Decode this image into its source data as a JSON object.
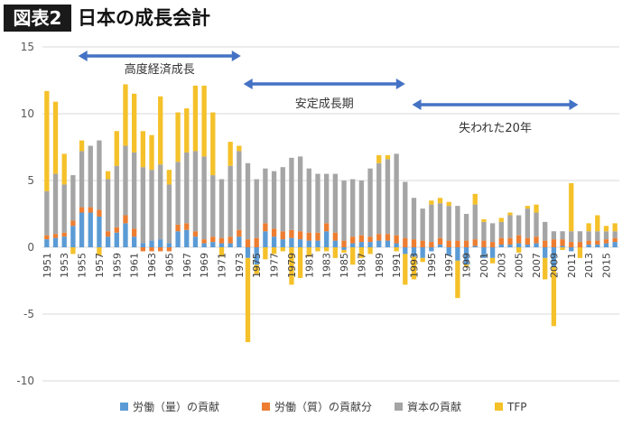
{
  "header": {
    "badge": "図表2",
    "title": "日本の成長会計"
  },
  "colors": {
    "labor_quantity": "#5b9bd5",
    "labor_quality": "#ed7d31",
    "capital": "#a5a5a5",
    "tfp": "#f5c12a",
    "arrow": "#4472c4",
    "grid": "#d9d9d9",
    "axis_text": "#595959"
  },
  "chart_data": {
    "type": "bar",
    "stacked": true,
    "title": "",
    "xlabel": "",
    "ylabel": "",
    "ylim": [
      -10,
      15
    ],
    "yticks": [
      -10,
      -5,
      0,
      5,
      10,
      15
    ],
    "grid": true,
    "legend_position": "bottom",
    "x": [
      1951,
      1952,
      1953,
      1954,
      1955,
      1956,
      1957,
      1958,
      1959,
      1960,
      1961,
      1962,
      1963,
      1964,
      1965,
      1966,
      1967,
      1968,
      1969,
      1970,
      1971,
      1972,
      1973,
      1974,
      1975,
      1976,
      1977,
      1978,
      1979,
      1980,
      1981,
      1982,
      1983,
      1984,
      1985,
      1986,
      1987,
      1988,
      1989,
      1990,
      1991,
      1992,
      1993,
      1994,
      1995,
      1996,
      1997,
      1998,
      1999,
      2000,
      2001,
      2002,
      2003,
      2004,
      2005,
      2006,
      2007,
      2008,
      2009,
      2010,
      2011,
      2012,
      2013,
      2014,
      2015,
      2016
    ],
    "x_tick_labels": [
      "1951",
      "1953",
      "1955",
      "1957",
      "1959",
      "1961",
      "1963",
      "1965",
      "1967",
      "1969",
      "1971",
      "1973",
      "1975",
      "1977",
      "1979",
      "1981",
      "1983",
      "1985",
      "1987",
      "1989",
      "1991",
      "1993",
      "1995",
      "1997",
      "1999",
      "2001",
      "2003",
      "2005",
      "2007",
      "2009",
      "2011",
      "2013",
      "2015"
    ],
    "series": [
      {
        "name": "労働（量）の貢献",
        "color_key": "labor_quantity",
        "values": [
          0.6,
          0.7,
          0.8,
          1.6,
          2.6,
          2.6,
          2.3,
          0.8,
          1.1,
          1.8,
          0.8,
          0.3,
          0.5,
          0.6,
          0.3,
          1.2,
          1.3,
          0.8,
          0.3,
          0.4,
          0.3,
          0.3,
          0.8,
          -0.8,
          -1.3,
          1.2,
          0.8,
          0.6,
          0.7,
          0.6,
          0.5,
          0.5,
          1.2,
          0.5,
          -0.2,
          0.3,
          0.4,
          0.4,
          0.5,
          0.5,
          0.3,
          -0.5,
          -0.7,
          -0.8,
          -0.3,
          0.2,
          -0.6,
          -1.0,
          -1.3,
          0.1,
          -0.8,
          -0.8,
          0.2,
          0.2,
          0.3,
          0.2,
          0.3,
          -0.8,
          -1.5,
          0.1,
          -0.3,
          0.0,
          0.2,
          0.2,
          0.3,
          0.4
        ]
      },
      {
        "name": "労働（質）の貢献分",
        "color_key": "labor_quality",
        "values": [
          0.3,
          0.3,
          0.3,
          0.4,
          0.4,
          0.4,
          0.5,
          0.4,
          0.4,
          0.6,
          0.6,
          -0.3,
          -0.3,
          -0.3,
          -0.3,
          0.5,
          0.5,
          0.4,
          0.3,
          0.4,
          0.4,
          0.5,
          0.5,
          0.6,
          0.7,
          0.6,
          0.6,
          0.6,
          0.6,
          0.6,
          0.6,
          0.6,
          0.6,
          0.6,
          0.5,
          0.5,
          0.5,
          0.4,
          0.5,
          0.5,
          0.6,
          0.7,
          0.6,
          0.5,
          0.4,
          0.5,
          0.5,
          0.5,
          0.5,
          0.5,
          0.5,
          0.4,
          0.5,
          0.5,
          0.6,
          0.5,
          0.5,
          0.5,
          0.6,
          0.5,
          0.4,
          0.4,
          0.3,
          0.3,
          0.3,
          0.3
        ]
      },
      {
        "name": "資本の貢献",
        "color_key": "capital",
        "values": [
          3.3,
          4.5,
          3.6,
          3.4,
          4.2,
          4.6,
          5.2,
          3.9,
          4.6,
          5.2,
          5.7,
          5.7,
          5.3,
          5.6,
          4.4,
          4.7,
          5.3,
          6.0,
          6.2,
          4.6,
          4.4,
          5.3,
          5.9,
          5.7,
          4.4,
          4.1,
          4.3,
          4.8,
          5.4,
          5.6,
          4.8,
          4.4,
          3.7,
          4.4,
          4.5,
          4.3,
          4.1,
          5.1,
          5.3,
          5.6,
          6.1,
          4.2,
          3.1,
          2.4,
          2.8,
          2.6,
          2.6,
          2.6,
          2.0,
          2.6,
          1.4,
          1.4,
          1.2,
          1.7,
          1.5,
          2.2,
          1.8,
          1.4,
          0.6,
          0.6,
          0.8,
          0.8,
          0.7,
          0.7,
          0.6,
          0.5
        ]
      },
      {
        "name": "TFP",
        "color_key": "tfp",
        "values": [
          7.5,
          5.4,
          2.3,
          -0.5,
          0.8,
          0.0,
          -0.6,
          0.6,
          2.6,
          4.6,
          4.4,
          2.7,
          2.6,
          5.1,
          1.1,
          3.7,
          3.3,
          4.9,
          5.3,
          4.7,
          -0.7,
          1.8,
          0.4,
          -6.3,
          -0.7,
          -0.9,
          -0.5,
          -0.3,
          -2.8,
          -2.3,
          -0.7,
          -0.3,
          -0.3,
          -0.8,
          -0.2,
          -1.3,
          -0.8,
          -0.5,
          0.6,
          0.3,
          -0.3,
          -2.3,
          -1.7,
          -0.3,
          0.3,
          0.4,
          0.3,
          -2.8,
          -0.2,
          0.8,
          0.2,
          -0.4,
          0.3,
          0.2,
          -0.4,
          0.2,
          0.6,
          -1.6,
          -4.4,
          -0.2,
          3.6,
          -0.8,
          0.6,
          1.2,
          0.4,
          0.6
        ]
      }
    ],
    "annotations": [
      {
        "label": "高度経済成長",
        "from": 1954.6,
        "to": 1973.2
      },
      {
        "label": "安定成長期",
        "from": 1973.5,
        "to": 1992.0
      },
      {
        "label": "失われた20年",
        "from": 1992.8,
        "to": 2011.8
      }
    ]
  }
}
